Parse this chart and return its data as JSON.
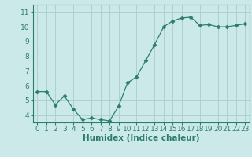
{
  "x": [
    0,
    1,
    2,
    3,
    4,
    5,
    6,
    7,
    8,
    9,
    10,
    11,
    12,
    13,
    14,
    15,
    16,
    17,
    18,
    19,
    20,
    21,
    22,
    23
  ],
  "y": [
    5.6,
    5.6,
    4.7,
    5.3,
    4.4,
    3.7,
    3.8,
    3.7,
    3.6,
    4.6,
    6.2,
    6.6,
    7.7,
    8.8,
    10.0,
    10.4,
    10.6,
    10.65,
    10.1,
    10.15,
    10.0,
    10.0,
    10.1,
    10.2
  ],
  "line_color": "#2d7d6e",
  "marker": "D",
  "marker_size": 2.5,
  "bg_color": "#cce9e9",
  "grid_color": "#aed0d0",
  "xlabel": "Humidex (Indice chaleur)",
  "ylim": [
    3.5,
    11.5
  ],
  "xlim": [
    -0.5,
    23.5
  ],
  "yticks": [
    4,
    5,
    6,
    7,
    8,
    9,
    10,
    11
  ],
  "xticks": [
    0,
    1,
    2,
    3,
    4,
    5,
    6,
    7,
    8,
    9,
    10,
    11,
    12,
    13,
    14,
    15,
    16,
    17,
    18,
    19,
    20,
    21,
    22,
    23
  ],
  "tick_label_fontsize": 6.5,
  "xlabel_fontsize": 7.5
}
